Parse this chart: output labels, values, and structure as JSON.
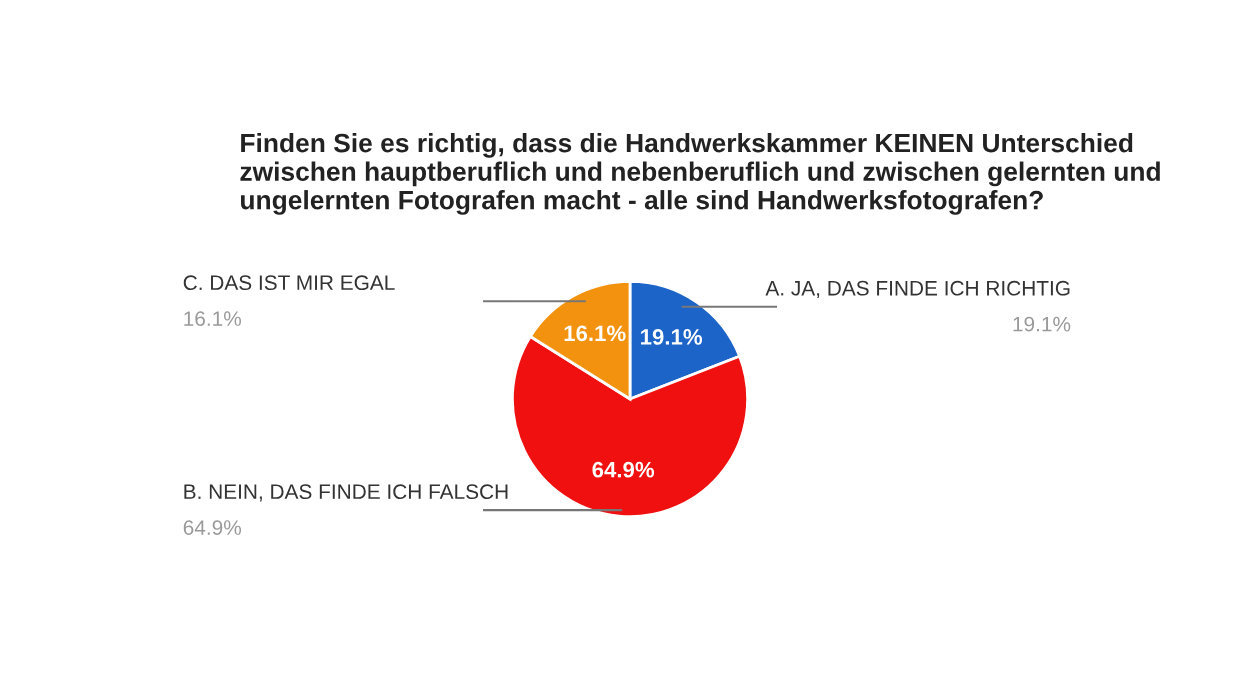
{
  "chart_data": {
    "type": "pie",
    "title": "Finden Sie es richtig, dass die Handwerkskammer KEINEN Unterschied\nzwischen hauptberuflich und nebenberuflich und zwischen gelernten und\nungelernten Fotografen macht - alle sind Handwerksfotografen?",
    "categories": [
      "A. JA, DAS FINDE ICH RICHTIG",
      "B. NEIN, DAS FINDE ICH FALSCH",
      "C. DAS IST MIR EGAL"
    ],
    "values": [
      19.1,
      64.9,
      16.1
    ],
    "colors": [
      "#1c64c8",
      "#f01010",
      "#f3920f"
    ],
    "value_labels": [
      "19.1%",
      "64.9%",
      "16.1%"
    ],
    "legend": false
  }
}
